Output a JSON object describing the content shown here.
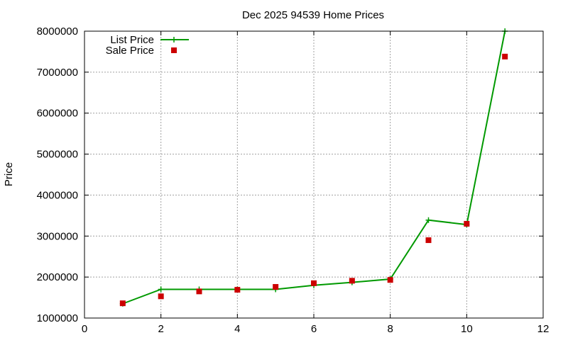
{
  "chart_data": {
    "type": "line",
    "title": "Dec 2025 94539 Home Prices",
    "xlabel": "",
    "ylabel": "Price",
    "xlim": [
      0,
      12
    ],
    "ylim": [
      1000000,
      8000000
    ],
    "xticks": [
      "0",
      "2",
      "4",
      "6",
      "8",
      "10",
      "12"
    ],
    "yticks": [
      "1000000",
      "2000000",
      "3000000",
      "4000000",
      "5000000",
      "6000000",
      "7000000",
      "8000000"
    ],
    "grid": true,
    "legend_position": "top-left",
    "series": [
      {
        "name": "List Price",
        "style": "line+plus",
        "color": "#009900",
        "x": [
          1,
          2,
          3,
          4,
          5,
          6,
          7,
          8,
          9,
          10,
          11
        ],
        "y": [
          1350000,
          1700000,
          1700000,
          1700000,
          1700000,
          1800000,
          1870000,
          1950000,
          3390000,
          3280000,
          8000000
        ]
      },
      {
        "name": "Sale Price",
        "style": "square",
        "color": "#cc0000",
        "x": [
          1,
          2,
          3,
          4,
          5,
          6,
          7,
          8,
          9,
          10,
          11
        ],
        "y": [
          1360000,
          1530000,
          1650000,
          1690000,
          1760000,
          1850000,
          1910000,
          1930000,
          2900000,
          3300000,
          7380000
        ]
      }
    ]
  }
}
